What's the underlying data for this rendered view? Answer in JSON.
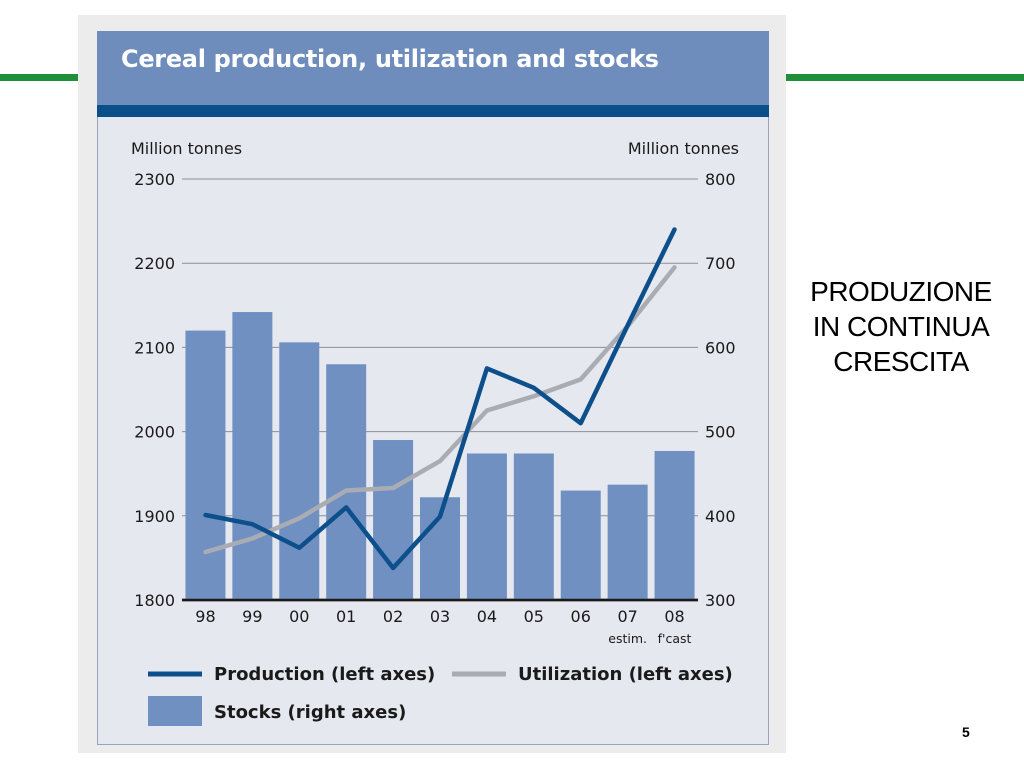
{
  "slide": {
    "side_note_lines": [
      "PRODUZIONE",
      "IN CONTINUA",
      "CRESCITA"
    ],
    "page_number": "5",
    "accent_color": "#1f8f3a"
  },
  "chart_data": {
    "type": "bar+line",
    "title": "Cereal production, utilization and stocks",
    "left_axis_label": "Million tonnes",
    "right_axis_label": "Million tonnes",
    "left_ylim": [
      1800,
      2300
    ],
    "left_ticks": [
      1800,
      1900,
      2000,
      2100,
      2200,
      2300
    ],
    "right_ylim": [
      300,
      800
    ],
    "right_ticks": [
      300,
      400,
      500,
      600,
      700,
      800
    ],
    "categories": [
      "98",
      "99",
      "00",
      "01",
      "02",
      "03",
      "04",
      "05",
      "06",
      "07",
      "08"
    ],
    "category_notes": {
      "07": "estim.",
      "08": "f'cast"
    },
    "series": [
      {
        "name": "Stocks",
        "type": "bar",
        "axis": "right",
        "color": "#7090c2",
        "values": [
          620,
          642,
          606,
          580,
          490,
          422,
          474,
          474,
          430,
          437,
          477
        ]
      },
      {
        "name": "Production",
        "type": "line",
        "axis": "left",
        "color": "#0d4f8b",
        "values": [
          1901,
          1890,
          1862,
          1910,
          1838,
          1899,
          2075,
          2052,
          2010,
          2126,
          2240
        ]
      },
      {
        "name": "Utilization",
        "type": "line",
        "axis": "left",
        "color": "#a9adb3",
        "values": [
          1857,
          1873,
          1897,
          1930,
          1933,
          1965,
          2025,
          2042,
          2062,
          2125,
          2195
        ]
      }
    ],
    "legend": [
      {
        "label": "Production (left axes)",
        "kind": "line",
        "color": "#0d4f8b"
      },
      {
        "label": "Utilization (left axes)",
        "kind": "line",
        "color": "#a9adb3"
      },
      {
        "label": "Stocks (right axes)",
        "kind": "box",
        "color": "#7090c2"
      }
    ]
  }
}
